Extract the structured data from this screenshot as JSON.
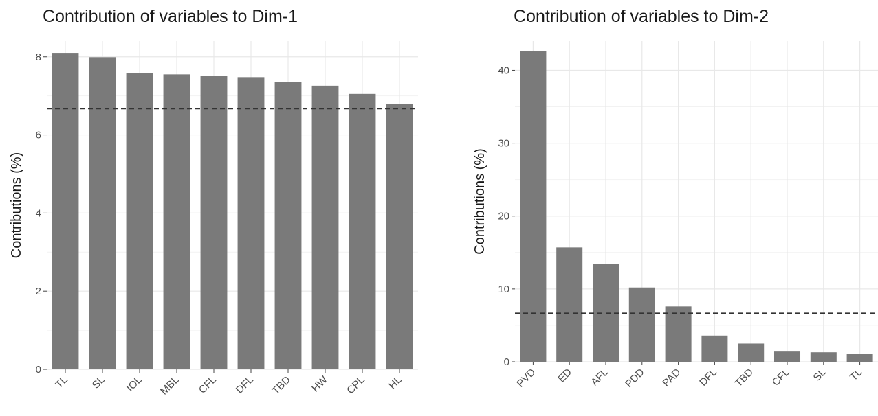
{
  "chart_data": [
    {
      "type": "bar",
      "title": "Contribution of variables to Dim-1",
      "xlabel": "",
      "ylabel": "Contributions (%)",
      "categories": [
        "TL",
        "SL",
        "IOL",
        "MBL",
        "CFL",
        "DFL",
        "TBD",
        "HW",
        "CPL",
        "HL"
      ],
      "values": [
        8.1,
        7.99,
        7.59,
        7.55,
        7.52,
        7.48,
        7.36,
        7.26,
        7.05,
        6.79
      ],
      "reference_line": 6.67,
      "ylim": [
        0,
        8.4
      ],
      "yticks": [
        0,
        2,
        4,
        6,
        8
      ],
      "grid": true,
      "bar_color": "#7a7a7a"
    },
    {
      "type": "bar",
      "title": "Contribution of variables to Dim-2",
      "xlabel": "",
      "ylabel": "Contributions (%)",
      "categories": [
        "PVD",
        "ED",
        "AFL",
        "PDD",
        "PAD",
        "DFL",
        "TBD",
        "CFL",
        "SL",
        "TL"
      ],
      "values": [
        42.6,
        15.7,
        13.4,
        10.2,
        7.6,
        3.6,
        2.5,
        1.4,
        1.3,
        1.1
      ],
      "reference_line": 6.67,
      "ylim": [
        0,
        44
      ],
      "yticks": [
        0,
        10,
        20,
        30,
        40
      ],
      "grid": true,
      "bar_color": "#7a7a7a"
    }
  ]
}
